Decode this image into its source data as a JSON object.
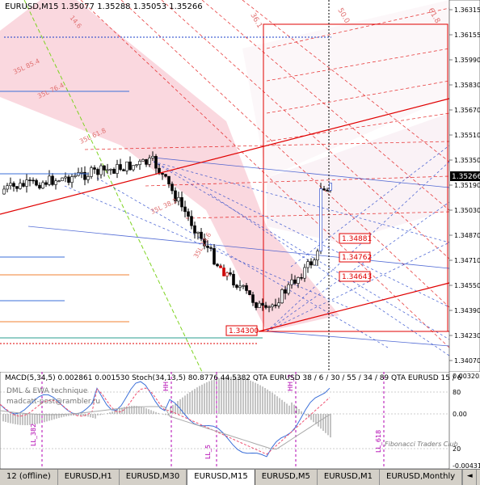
{
  "symbol_info": "EURUSD,M15  1.35077 1.35288 1.35053 1.35266",
  "price_scale": [
    "1.36315",
    "1.36155",
    "1.35990",
    "1.35830",
    "1.35670",
    "1.35510",
    "1.35350",
    "1.35190",
    "1.35030",
    "1.34870",
    "1.34710",
    "1.34550",
    "1.34390",
    "1.34230",
    "1.34070"
  ],
  "current_price": "1.35266",
  "price_labels": [
    "1.34881",
    "1.34762",
    "1.34643",
    "1.34300"
  ],
  "fan_labels": [
    "36.1",
    "50.0",
    "61.8",
    "14.6"
  ],
  "channel_labels": [
    "35L 85.4",
    "35L 76.4",
    "35L 61.8",
    "35L 38.2",
    "35L 23.6"
  ],
  "indicator_header": "MACD(5,34,5) 0.002861 0.001530   Stoch(34,13,5) 80.8776 44.5382   QTA EURUSD 38 / 6 / 30 / 55 / 34 / 89   QTA EURUSD 15 / 6",
  "indicator_notes": [
    "DML & EWA technique",
    "madcatt-post@rambler.ru"
  ],
  "osc_labels": [
    "LL_382",
    "LL_5",
    "HH",
    "HH_2",
    "LL_618"
  ],
  "sub_scale": [
    "0.003203",
    "80",
    "0.00",
    "20",
    "-0.00431"
  ],
  "watermark": "Fibonacci Traders Club",
  "tabs": [
    {
      "label": "12 (offline)",
      "active": false
    },
    {
      "label": "EURUSD,H1",
      "active": false
    },
    {
      "label": "EURUSD,M30",
      "active": false
    },
    {
      "label": "EURUSD,M15",
      "active": true
    },
    {
      "label": "EURUSD,M5",
      "active": false
    },
    {
      "label": "EURUSD,M1",
      "active": false
    },
    {
      "label": "EURUSD,Monthly",
      "active": false
    }
  ],
  "nav": {
    "left": "◄",
    "right": "►"
  },
  "colors": {
    "fib_red": "#e00000",
    "fan_pink": "#f48a9a",
    "blue_line": "#1a3cc8",
    "green_dash": "#7ed321",
    "purple": "#b000b0"
  }
}
